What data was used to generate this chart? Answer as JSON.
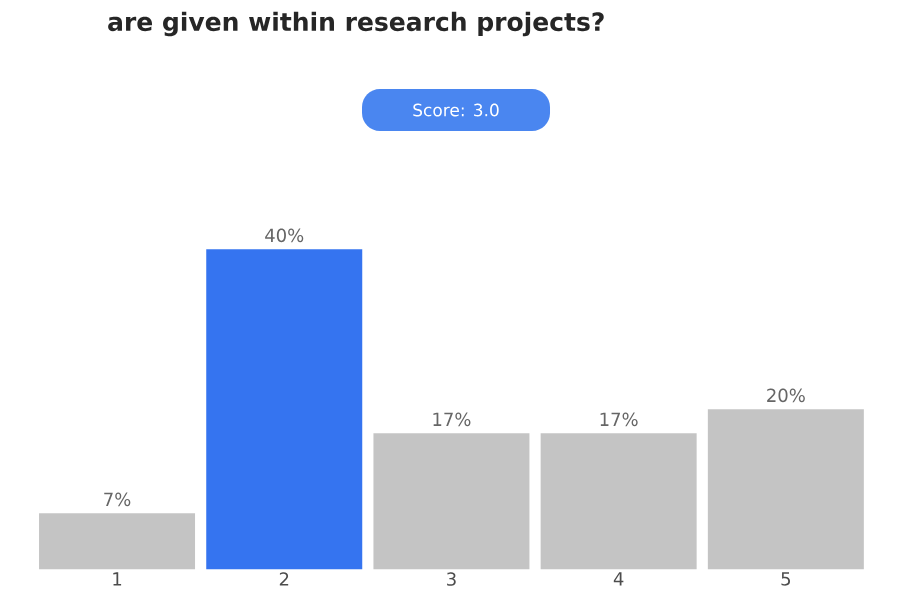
{
  "chart_data": {
    "type": "bar",
    "title": "are given within research projects?",
    "categories": [
      "1",
      "2",
      "3",
      "4",
      "5"
    ],
    "values": [
      7,
      40,
      17,
      17,
      20
    ],
    "value_labels": [
      "7%",
      "40%",
      "17%",
      "17%",
      "20%"
    ],
    "colors": [
      "#c4c4c4",
      "#3574f0",
      "#c4c4c4",
      "#c4c4c4",
      "#c4c4c4"
    ],
    "annotations": [
      "Score: 3.0"
    ],
    "tick_labels": "x"
  }
}
